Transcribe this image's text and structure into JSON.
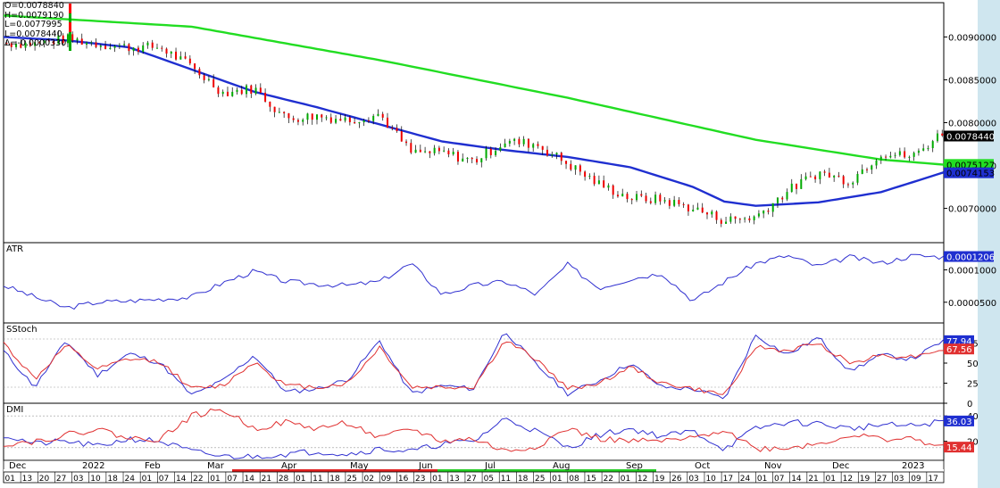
{
  "ohlc_readout": {
    "open": "O=0.0078840",
    "high": "H=0.0079190",
    "low": "L=0.0077995",
    "last": "L=0.0078440",
    "change": "Δ=-0.0000330",
    "colors": [
      "#ff0000",
      "#00aa00",
      "#ff0000",
      "#00aa00",
      "#00aa00"
    ]
  },
  "chart_data": [
    {
      "type": "candlestick",
      "name": "price",
      "ylim": [
        0.0066,
        0.0094
      ],
      "y_ticks": [
        "0.0070000",
        "0.0075000",
        "0.0080000",
        "0.0085000",
        "0.0090000"
      ],
      "last_value_label": "0.0078440",
      "series": [
        {
          "name": "",
          "color": "#22dd22",
          "label": "0.0075127",
          "x": [
            0,
            60,
            120,
            180,
            240,
            280,
            300
          ],
          "values": [
            0.00925,
            0.00912,
            0.00873,
            0.00829,
            0.0078,
            0.00757,
            0.00751
          ]
        },
        {
          "name": "",
          "color": "#1f2fd0",
          "label": "0.0074153",
          "x": [
            0,
            20,
            40,
            60,
            80,
            100,
            120,
            140,
            160,
            180,
            200,
            220,
            230,
            240,
            260,
            280,
            300
          ],
          "values": [
            0.009,
            0.00896,
            0.00888,
            0.00862,
            0.00836,
            0.00818,
            0.00798,
            0.00778,
            0.00768,
            0.0076,
            0.00748,
            0.00725,
            0.00708,
            0.00703,
            0.00707,
            0.00719,
            0.00742
          ]
        }
      ],
      "anchors": {
        "x": [
          0,
          10,
          20,
          30,
          40,
          50,
          60,
          70,
          80,
          90,
          100,
          110,
          120,
          130,
          140,
          150,
          160,
          170,
          180,
          190,
          200,
          210,
          220,
          230,
          240,
          250,
          260,
          270,
          280,
          290,
          300
        ],
        "close": [
          0.00893,
          0.00892,
          0.00898,
          0.00892,
          0.00888,
          0.00888,
          0.00865,
          0.00835,
          0.0084,
          0.00805,
          0.00808,
          0.00803,
          0.0081,
          0.00765,
          0.00765,
          0.00755,
          0.00778,
          0.00775,
          0.00752,
          0.00728,
          0.00712,
          0.0071,
          0.007,
          0.00686,
          0.0069,
          0.0072,
          0.00742,
          0.00732,
          0.00765,
          0.0076,
          0.0079
        ]
      }
    },
    {
      "type": "line",
      "name": "ATR",
      "ylim": [
        1.8e-05,
        0.000142
      ],
      "y_ticks": [
        "0.0000500",
        "0.0001000"
      ],
      "value_label": "0.0001206",
      "color": "#3030d0",
      "x": [
        0,
        10,
        20,
        30,
        40,
        50,
        60,
        70,
        80,
        90,
        100,
        110,
        120,
        130,
        140,
        150,
        160,
        170,
        180,
        190,
        200,
        210,
        220,
        230,
        240,
        250,
        260,
        270,
        280,
        290,
        300
      ],
      "values": [
        7.6e-05,
        5.8e-05,
        4.1e-05,
        5e-05,
        5.2e-05,
        5.5e-05,
        5.8e-05,
        8e-05,
        9.8e-05,
        8.2e-05,
        7.8e-05,
        7.6e-05,
        8.2e-05,
        0.00011,
        6.2e-05,
        7.6e-05,
        8.2e-05,
        6.2e-05,
        0.000108,
        7.2e-05,
        8.6e-05,
        9.5e-05,
        5.2e-05,
        8.2e-05,
        0.00011,
        0.000122,
        0.000105,
        0.00012,
        0.00011,
        0.000122,
        0.00012
      ]
    },
    {
      "type": "line",
      "name": "SStoch",
      "ylim": [
        0,
        100
      ],
      "y_ticks": [
        "0",
        "25",
        "50",
        "75"
      ],
      "value_labels": [
        "77.94",
        "67.56"
      ],
      "guides": [
        80,
        20
      ],
      "series": [
        {
          "name": "",
          "color": "#3030d0",
          "x": [
            0,
            10,
            20,
            30,
            40,
            50,
            60,
            70,
            80,
            90,
            100,
            110,
            120,
            130,
            140,
            150,
            160,
            170,
            180,
            190,
            200,
            210,
            220,
            230,
            240,
            250,
            260,
            270,
            280,
            290,
            300
          ],
          "values": [
            65,
            20,
            78,
            35,
            62,
            50,
            10,
            28,
            60,
            14,
            18,
            30,
            78,
            12,
            22,
            18,
            90,
            48,
            12,
            28,
            50,
            20,
            18,
            5,
            85,
            60,
            82,
            40,
            60,
            55,
            78
          ]
        },
        {
          "name": "",
          "color": "#e03030",
          "x": [
            0,
            10,
            20,
            30,
            40,
            50,
            60,
            70,
            80,
            90,
            100,
            110,
            120,
            130,
            140,
            150,
            160,
            170,
            180,
            190,
            200,
            210,
            220,
            230,
            240,
            250,
            260,
            270,
            280,
            290,
            300
          ],
          "values": [
            75,
            30,
            72,
            42,
            55,
            52,
            18,
            22,
            52,
            22,
            20,
            25,
            70,
            20,
            20,
            20,
            78,
            55,
            18,
            25,
            45,
            25,
            18,
            10,
            70,
            65,
            75,
            50,
            60,
            58,
            68
          ]
        }
      ]
    },
    {
      "type": "line",
      "name": "DMI",
      "ylim": [
        5,
        50
      ],
      "y_ticks": [
        "20",
        "40"
      ],
      "value_labels": [
        "36.03",
        "15.44"
      ],
      "guides": [
        40,
        15
      ],
      "series": [
        {
          "name": "",
          "color": "#3030d0",
          "x": [
            0,
            10,
            20,
            30,
            40,
            50,
            60,
            70,
            80,
            90,
            100,
            110,
            120,
            130,
            140,
            150,
            160,
            170,
            180,
            190,
            200,
            210,
            220,
            230,
            240,
            250,
            260,
            270,
            280,
            290,
            300
          ],
          "values": [
            25,
            18,
            20,
            16,
            22,
            20,
            12,
            8,
            8,
            10,
            12,
            10,
            14,
            12,
            18,
            20,
            38,
            28,
            15,
            25,
            30,
            24,
            28,
            14,
            30,
            35,
            34,
            30,
            33,
            32,
            36
          ]
        },
        {
          "name": "",
          "color": "#e03030",
          "x": [
            0,
            10,
            20,
            30,
            40,
            50,
            60,
            70,
            80,
            90,
            100,
            110,
            120,
            130,
            140,
            150,
            160,
            170,
            180,
            190,
            200,
            210,
            220,
            230,
            240,
            250,
            260,
            270,
            280,
            290,
            300
          ],
          "values": [
            18,
            20,
            25,
            30,
            22,
            22,
            40,
            45,
            30,
            35,
            30,
            35,
            22,
            30,
            20,
            22,
            12,
            16,
            30,
            22,
            20,
            20,
            22,
            30,
            14,
            15,
            18,
            25,
            22,
            22,
            15
          ]
        }
      ]
    }
  ],
  "x_axis": {
    "months": [
      "Dec",
      "2022",
      "Feb",
      "Mar",
      "Apr",
      "May",
      "Jun",
      "Jul",
      "Aug",
      "Sep",
      "Oct",
      "Nov",
      "Dec",
      "2023"
    ],
    "days": [
      "01",
      "13",
      "20",
      "27",
      "03",
      "10",
      "18",
      "24",
      "01",
      "07",
      "14",
      "22",
      "01",
      "07",
      "14",
      "21",
      "28",
      "01",
      "11",
      "18",
      "25",
      "02",
      "09",
      "16",
      "23",
      "01",
      "13",
      "27",
      "05",
      "11",
      "18",
      "25",
      "01",
      "08",
      "15",
      "22",
      "01",
      "12",
      "19",
      "26",
      "03",
      "10",
      "17",
      "24",
      "01",
      "07",
      "14",
      "21",
      "01",
      "12",
      "19",
      "27",
      "03",
      "09",
      "17"
    ]
  },
  "colors": {
    "grid": "#555555",
    "candle_up": "#00aa00",
    "candle_down": "#ee0000",
    "wick": "#000000"
  }
}
